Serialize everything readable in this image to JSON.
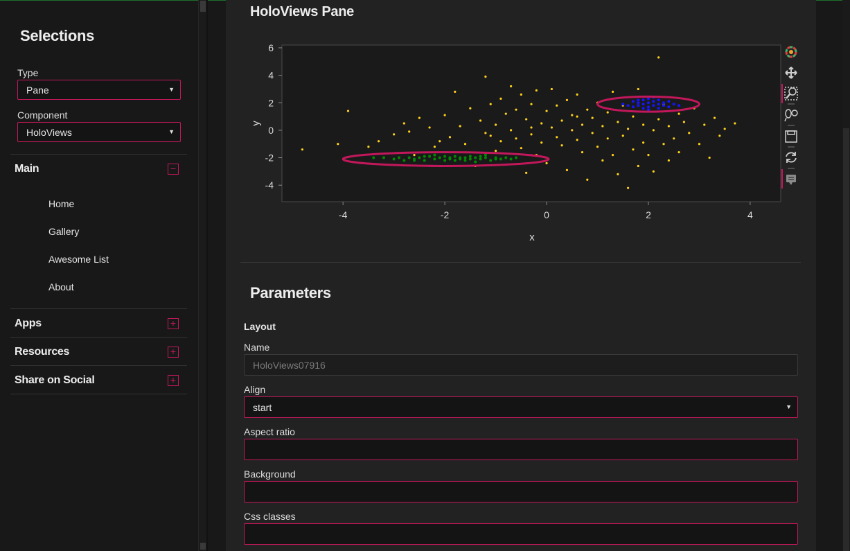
{
  "sidebar": {
    "title": "Selections",
    "type_label": "Type",
    "type_value": "Pane",
    "component_label": "Component",
    "component_value": "HoloViews",
    "sections": [
      {
        "label": "Main",
        "toggle": "−"
      },
      {
        "label": "Apps",
        "toggle": "+"
      },
      {
        "label": "Resources",
        "toggle": "+"
      },
      {
        "label": "Share on Social",
        "toggle": "+"
      }
    ],
    "nav_links": [
      "Home",
      "Gallery",
      "Awesome List",
      "About"
    ]
  },
  "main": {
    "title": "HoloViews Pane",
    "params_title": "Parameters",
    "layout_heading": "Layout",
    "fields": [
      {
        "label": "Name",
        "value": "HoloViews07916",
        "disabled": true
      },
      {
        "label": "Align",
        "value": "start",
        "select": true
      },
      {
        "label": "Aspect ratio",
        "value": ""
      },
      {
        "label": "Background",
        "value": ""
      },
      {
        "label": "Css classes",
        "value": ""
      }
    ]
  },
  "toolbar": {
    "icons": [
      "bokeh-logo-icon",
      "pan-icon",
      "box-zoom-icon",
      "lasso-select-icon",
      "save-icon",
      "reset-icon",
      "hover-icon"
    ]
  },
  "colors": {
    "accent": "#c2185b",
    "series_all": "#ffd21a",
    "series_left": "#008a00",
    "series_right": "#1515ff",
    "plot_bg": "#1a1a1a"
  },
  "chart_data": {
    "type": "scatter",
    "xlabel": "x",
    "ylabel": "y",
    "xlim": [
      -5.2,
      4.6
    ],
    "ylim": [
      -5.2,
      6.2
    ],
    "xticks": [
      -4,
      -2,
      0,
      2,
      4
    ],
    "yticks": [
      6,
      4,
      2,
      0,
      -2,
      -4
    ],
    "grid": false,
    "series": [
      {
        "color": "#ffd21a",
        "points": [
          [
            -4.8,
            -1.4
          ],
          [
            -4.1,
            -1.0
          ],
          [
            -3.9,
            1.4
          ],
          [
            -3.5,
            -1.2
          ],
          [
            -3.3,
            -0.8
          ],
          [
            -3.0,
            -0.3
          ],
          [
            -2.8,
            0.5
          ],
          [
            -2.6,
            -1.8
          ],
          [
            -2.5,
            0.9
          ],
          [
            -2.3,
            0.2
          ],
          [
            -2.2,
            -1.2
          ],
          [
            -2.0,
            1.1
          ],
          [
            -1.9,
            -0.5
          ],
          [
            -1.8,
            2.8
          ],
          [
            -1.7,
            0.3
          ],
          [
            -1.6,
            -1.0
          ],
          [
            -1.5,
            1.6
          ],
          [
            -1.4,
            -2.6
          ],
          [
            -1.3,
            0.7
          ],
          [
            -1.2,
            3.9
          ],
          [
            -1.2,
            -0.2
          ],
          [
            -1.1,
            1.9
          ],
          [
            -1.0,
            -1.5
          ],
          [
            -1.0,
            0.4
          ],
          [
            -0.9,
            2.3
          ],
          [
            -0.9,
            -0.8
          ],
          [
            -0.8,
            1.2
          ],
          [
            -0.8,
            -2.0
          ],
          [
            -0.7,
            0.0
          ],
          [
            -0.7,
            3.2
          ],
          [
            -0.6,
            1.5
          ],
          [
            -0.6,
            -0.6
          ],
          [
            -0.5,
            2.6
          ],
          [
            -0.5,
            -1.3
          ],
          [
            -0.4,
            0.8
          ],
          [
            -0.4,
            -3.1
          ],
          [
            -0.3,
            1.9
          ],
          [
            -0.3,
            -0.3
          ],
          [
            -0.2,
            2.9
          ],
          [
            -0.2,
            -1.8
          ],
          [
            -0.1,
            0.5
          ],
          [
            -0.1,
            -0.9
          ],
          [
            0.0,
            1.4
          ],
          [
            0.0,
            -2.4
          ],
          [
            0.1,
            0.2
          ],
          [
            0.1,
            3.0
          ],
          [
            0.2,
            -0.5
          ],
          [
            0.2,
            1.8
          ],
          [
            0.3,
            -1.1
          ],
          [
            0.3,
            0.7
          ],
          [
            0.4,
            2.2
          ],
          [
            0.4,
            -2.9
          ],
          [
            0.5,
            0.0
          ],
          [
            0.5,
            1.1
          ],
          [
            0.6,
            -0.7
          ],
          [
            0.6,
            2.6
          ],
          [
            0.7,
            -1.6
          ],
          [
            0.7,
            0.4
          ],
          [
            0.8,
            1.5
          ],
          [
            0.8,
            -3.6
          ],
          [
            0.9,
            -0.2
          ],
          [
            0.9,
            0.9
          ],
          [
            1.0,
            2.0
          ],
          [
            1.0,
            -1.2
          ],
          [
            1.1,
            0.3
          ],
          [
            1.1,
            -2.2
          ],
          [
            1.2,
            1.3
          ],
          [
            1.2,
            -0.6
          ],
          [
            1.3,
            2.8
          ],
          [
            1.3,
            -1.8
          ],
          [
            1.4,
            0.6
          ],
          [
            1.4,
            -3.2
          ],
          [
            1.5,
            1.8
          ],
          [
            1.5,
            -0.4
          ],
          [
            1.6,
            0.1
          ],
          [
            1.6,
            -4.2
          ],
          [
            1.7,
            -1.4
          ],
          [
            1.7,
            1.0
          ],
          [
            1.8,
            3.0
          ],
          [
            1.8,
            -2.6
          ],
          [
            1.9,
            0.4
          ],
          [
            1.9,
            -0.9
          ],
          [
            2.0,
            1.5
          ],
          [
            2.0,
            -1.8
          ],
          [
            2.1,
            0.0
          ],
          [
            2.1,
            -3.0
          ],
          [
            2.2,
            5.3
          ],
          [
            2.2,
            0.8
          ],
          [
            2.3,
            -1.0
          ],
          [
            2.3,
            1.9
          ],
          [
            2.4,
            -2.2
          ],
          [
            2.4,
            0.3
          ],
          [
            2.5,
            -0.6
          ],
          [
            2.6,
            1.2
          ],
          [
            2.6,
            -1.6
          ],
          [
            2.7,
            0.6
          ],
          [
            2.8,
            -0.2
          ],
          [
            2.9,
            1.6
          ],
          [
            3.0,
            -1.0
          ],
          [
            3.1,
            0.4
          ],
          [
            3.2,
            -2.0
          ],
          [
            3.3,
            0.9
          ],
          [
            3.4,
            -0.4
          ],
          [
            3.5,
            0.1
          ],
          [
            3.7,
            0.5
          ],
          [
            -2.7,
            -0.1
          ],
          [
            -2.1,
            -0.8
          ],
          [
            -1.1,
            -0.4
          ],
          [
            -0.3,
            0.2
          ],
          [
            0.6,
            1.0
          ]
        ]
      },
      {
        "color": "#008a00",
        "points": [
          [
            -3.4,
            -2.0
          ],
          [
            -3.2,
            -2.0
          ],
          [
            -3.0,
            -2.1
          ],
          [
            -2.9,
            -2.0
          ],
          [
            -2.8,
            -2.2
          ],
          [
            -2.7,
            -2.0
          ],
          [
            -2.6,
            -2.1
          ],
          [
            -2.5,
            -2.0
          ],
          [
            -2.4,
            -2.2
          ],
          [
            -2.3,
            -1.9
          ],
          [
            -2.2,
            -2.1
          ],
          [
            -2.1,
            -2.0
          ],
          [
            -2.0,
            -2.2
          ],
          [
            -2.0,
            -1.9
          ],
          [
            -1.9,
            -2.1
          ],
          [
            -1.9,
            -2.0
          ],
          [
            -1.8,
            -2.2
          ],
          [
            -1.8,
            -1.9
          ],
          [
            -1.7,
            -2.0
          ],
          [
            -1.7,
            -2.1
          ],
          [
            -1.6,
            -2.0
          ],
          [
            -1.6,
            -2.2
          ],
          [
            -1.5,
            -1.9
          ],
          [
            -1.5,
            -2.1
          ],
          [
            -1.4,
            -2.0
          ],
          [
            -1.3,
            -2.1
          ],
          [
            -1.3,
            -1.9
          ],
          [
            -1.2,
            -2.0
          ],
          [
            -1.1,
            -2.2
          ],
          [
            -1.0,
            -2.0
          ],
          [
            -0.9,
            -2.1
          ],
          [
            -0.8,
            -2.0
          ],
          [
            -0.7,
            -2.1
          ],
          [
            -0.6,
            -2.0
          ],
          [
            -2.2,
            -1.8
          ],
          [
            -2.4,
            -1.9
          ],
          [
            -1.4,
            -2.3
          ],
          [
            -1.2,
            -1.8
          ],
          [
            -2.6,
            -2.2
          ],
          [
            -1.0,
            -2.1
          ]
        ]
      },
      {
        "color": "#1515ff",
        "points": [
          [
            1.5,
            1.9
          ],
          [
            1.6,
            1.8
          ],
          [
            1.7,
            2.1
          ],
          [
            1.7,
            1.7
          ],
          [
            1.8,
            2.0
          ],
          [
            1.8,
            1.8
          ],
          [
            1.9,
            2.2
          ],
          [
            1.9,
            1.9
          ],
          [
            2.0,
            1.7
          ],
          [
            2.0,
            2.0
          ],
          [
            2.0,
            2.3
          ],
          [
            2.1,
            1.8
          ],
          [
            2.1,
            2.1
          ],
          [
            2.2,
            1.9
          ],
          [
            2.2,
            1.6
          ],
          [
            2.3,
            2.0
          ],
          [
            2.3,
            1.8
          ],
          [
            2.4,
            2.1
          ],
          [
            2.4,
            1.7
          ],
          [
            2.5,
            1.9
          ],
          [
            2.6,
            1.8
          ],
          [
            1.9,
            1.6
          ],
          [
            2.1,
            2.4
          ],
          [
            1.8,
            2.2
          ],
          [
            2.2,
            2.2
          ],
          [
            2.0,
            1.5
          ]
        ]
      }
    ],
    "highlights": [
      {
        "center": [
          -1.98,
          -2.1
        ],
        "rx": 2.02,
        "ry": 0.5
      },
      {
        "center": [
          2.0,
          1.9
        ],
        "rx": 1.0,
        "ry": 0.55
      }
    ]
  }
}
